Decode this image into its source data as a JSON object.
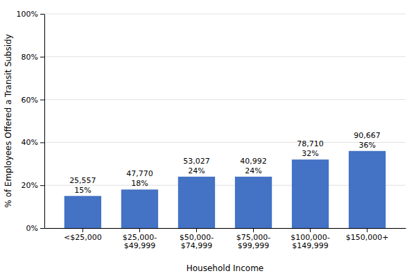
{
  "chart_data": {
    "type": "bar",
    "categories": [
      "<$25,000",
      "$25,000-\n$49,999",
      "$50,000-\n$74,999",
      "$75,000-\n$99,999",
      "$100,000-\n$149,999",
      "$150,000+"
    ],
    "values": [
      15,
      18,
      24,
      24,
      32,
      36
    ],
    "value_labels": [
      "15%",
      "18%",
      "24%",
      "24%",
      "32%",
      "36%"
    ],
    "counts": [
      "25,557",
      "47,770",
      "53,027",
      "40,992",
      "78,710",
      "90,667"
    ],
    "data_labels": true,
    "color": "#4472C4",
    "xlabel": "Household Income",
    "ylabel": "% of Employees Offered a Transit Subsidy",
    "ylim": [
      0,
      100
    ],
    "yticks": [
      {
        "value": 0,
        "label": "0%"
      },
      {
        "value": 20,
        "label": "20%"
      },
      {
        "value": 40,
        "label": "40%"
      },
      {
        "value": 60,
        "label": "60%"
      },
      {
        "value": 80,
        "label": "80%"
      },
      {
        "value": 100,
        "label": "100%"
      }
    ],
    "grid": true
  }
}
